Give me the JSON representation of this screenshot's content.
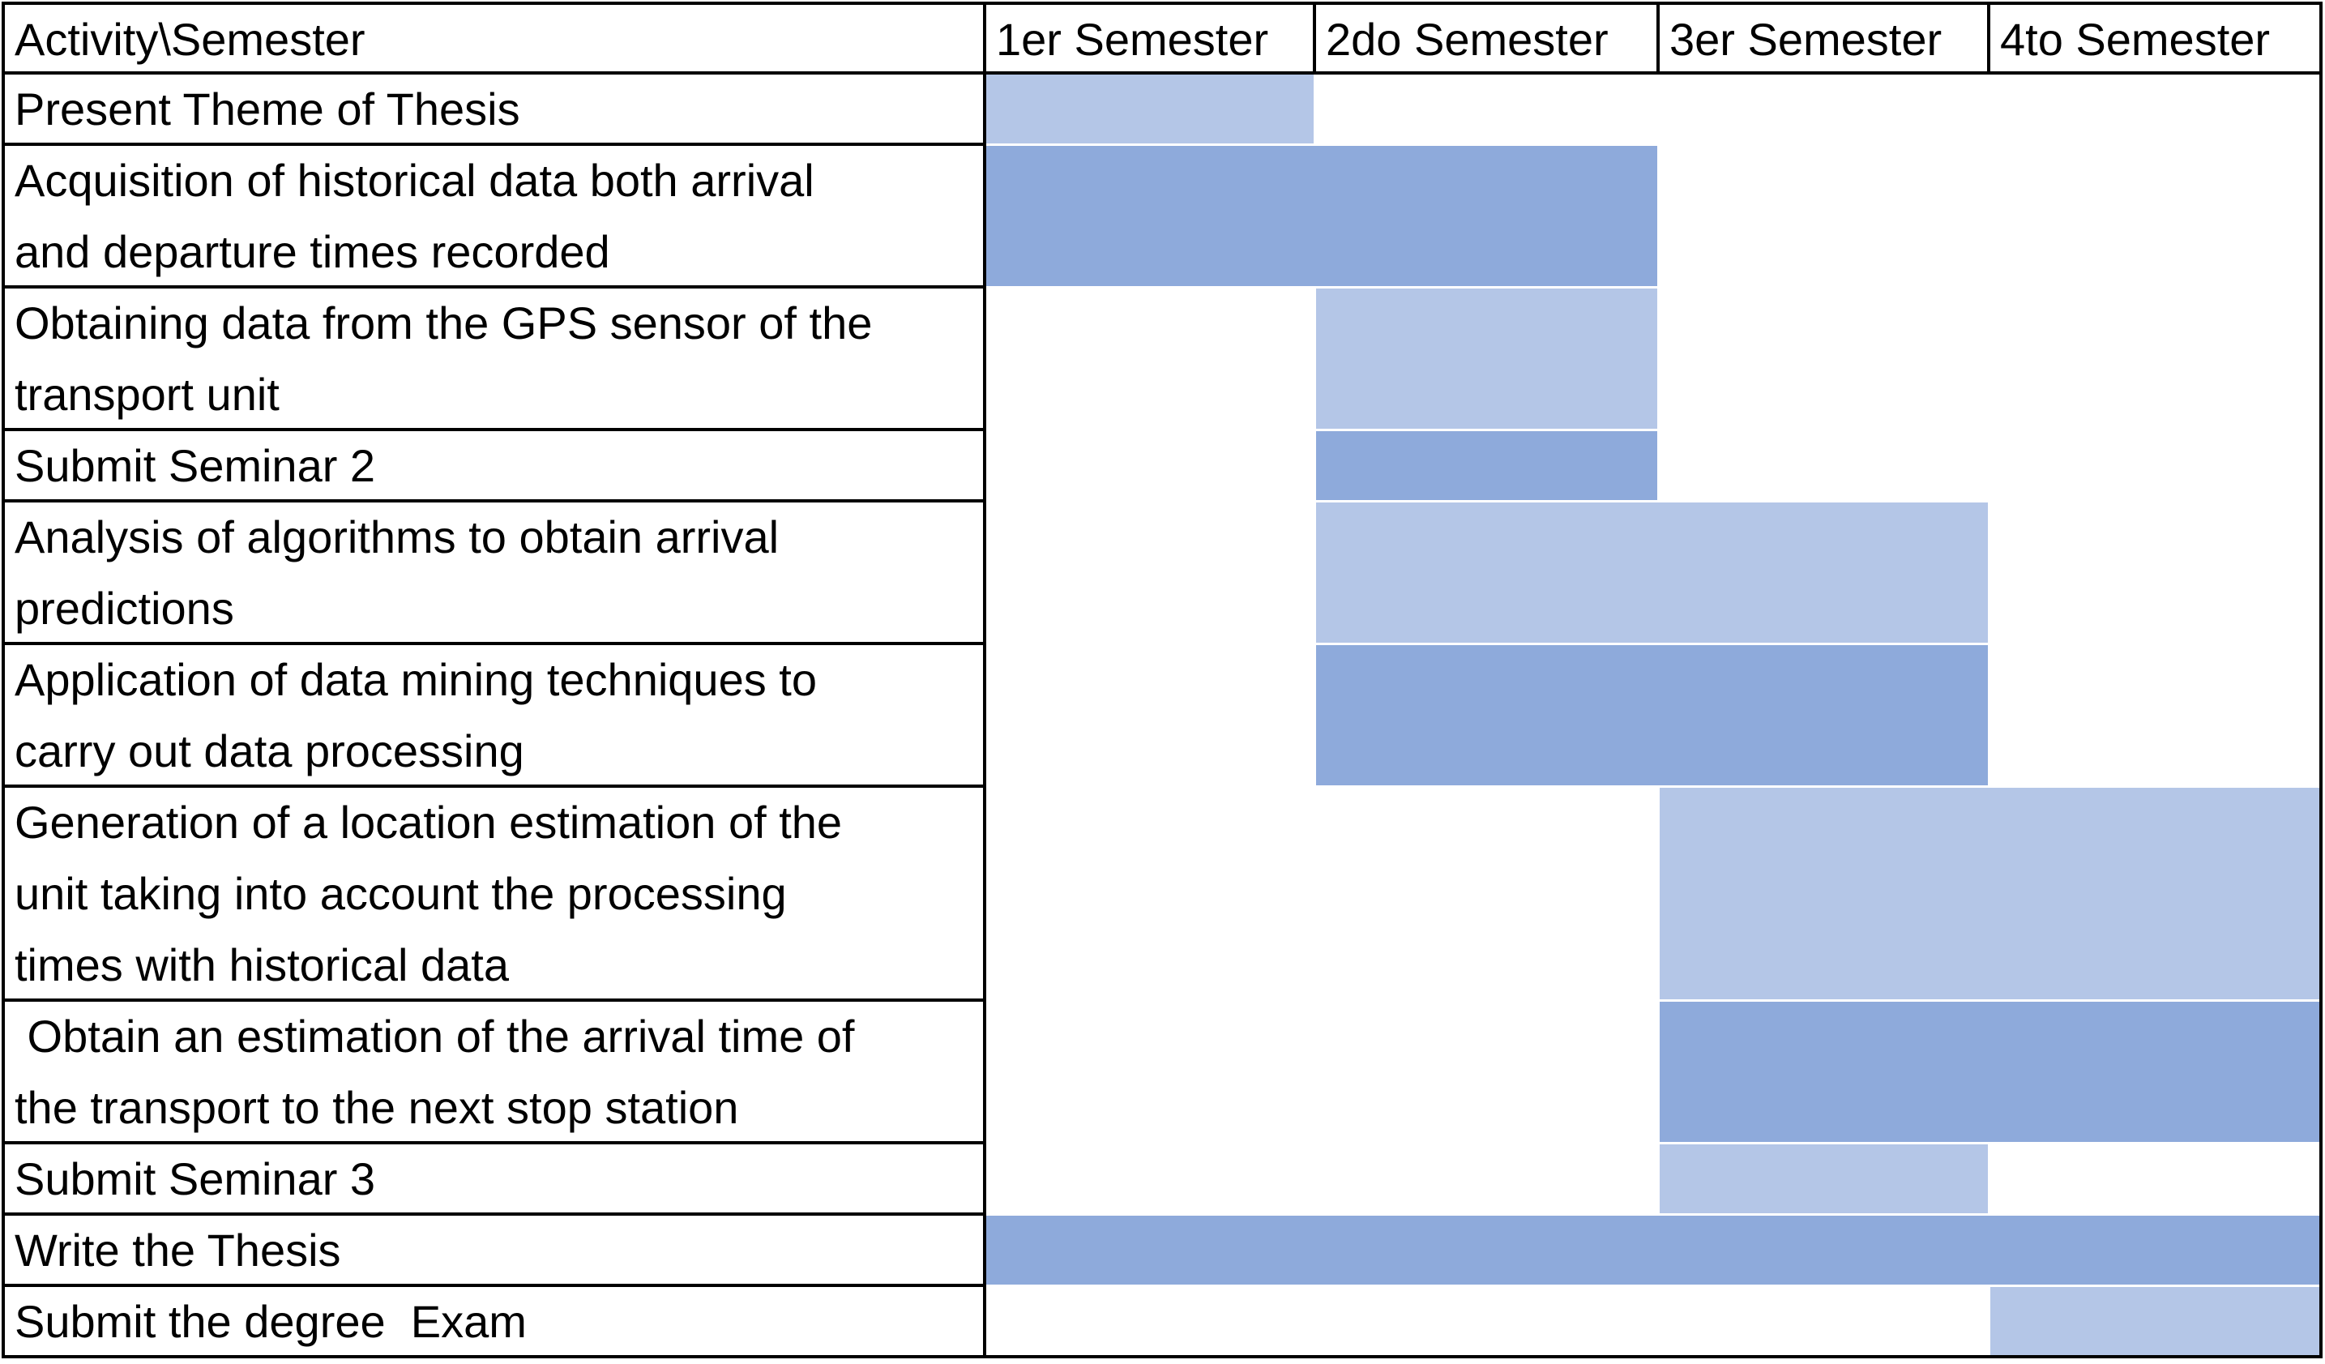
{
  "chart_data": {
    "type": "table",
    "title": "",
    "header": {
      "activity_label": "Activity\\Semester",
      "periods": [
        "1er Semester",
        "2do Semester",
        "3er Semester",
        "4to Semester"
      ]
    },
    "colors": {
      "light": "#b4c6e7",
      "dark": "#8eaadb",
      "grid": "#000000"
    },
    "rows": [
      {
        "lines": [
          "Present Theme of Thesis"
        ],
        "start": 1,
        "end": 1,
        "shade": "light"
      },
      {
        "lines": [
          "Acquisition of historical data both arrival",
          "and departure times recorded"
        ],
        "start": 1,
        "end": 2,
        "shade": "dark"
      },
      {
        "lines": [
          "Obtaining data from the GPS sensor of the",
          "transport unit"
        ],
        "start": 2,
        "end": 2,
        "shade": "light"
      },
      {
        "lines": [
          "Submit Seminar 2"
        ],
        "start": 2,
        "end": 2,
        "shade": "dark"
      },
      {
        "lines": [
          "Analysis of algorithms to obtain arrival",
          "predictions"
        ],
        "start": 2,
        "end": 3,
        "shade": "light"
      },
      {
        "lines": [
          "Application of data mining techniques to",
          "carry out data processing"
        ],
        "start": 2,
        "end": 3,
        "shade": "dark"
      },
      {
        "lines": [
          "Generation of a location estimation of the",
          "unit taking into account the processing",
          "times with historical data"
        ],
        "start": 3,
        "end": 4,
        "shade": "light"
      },
      {
        "lines": [
          " Obtain an estimation of the arrival time of",
          "the transport to the next stop station"
        ],
        "start": 3,
        "end": 4,
        "shade": "dark"
      },
      {
        "lines": [
          "Submit Seminar 3"
        ],
        "start": 3,
        "end": 3,
        "shade": "light"
      },
      {
        "lines": [
          "Write the Thesis"
        ],
        "start": 1,
        "end": 4,
        "shade": "dark"
      },
      {
        "lines": [
          "Submit the degree  Exam"
        ],
        "start": 4,
        "end": 4,
        "shade": "light"
      }
    ]
  }
}
